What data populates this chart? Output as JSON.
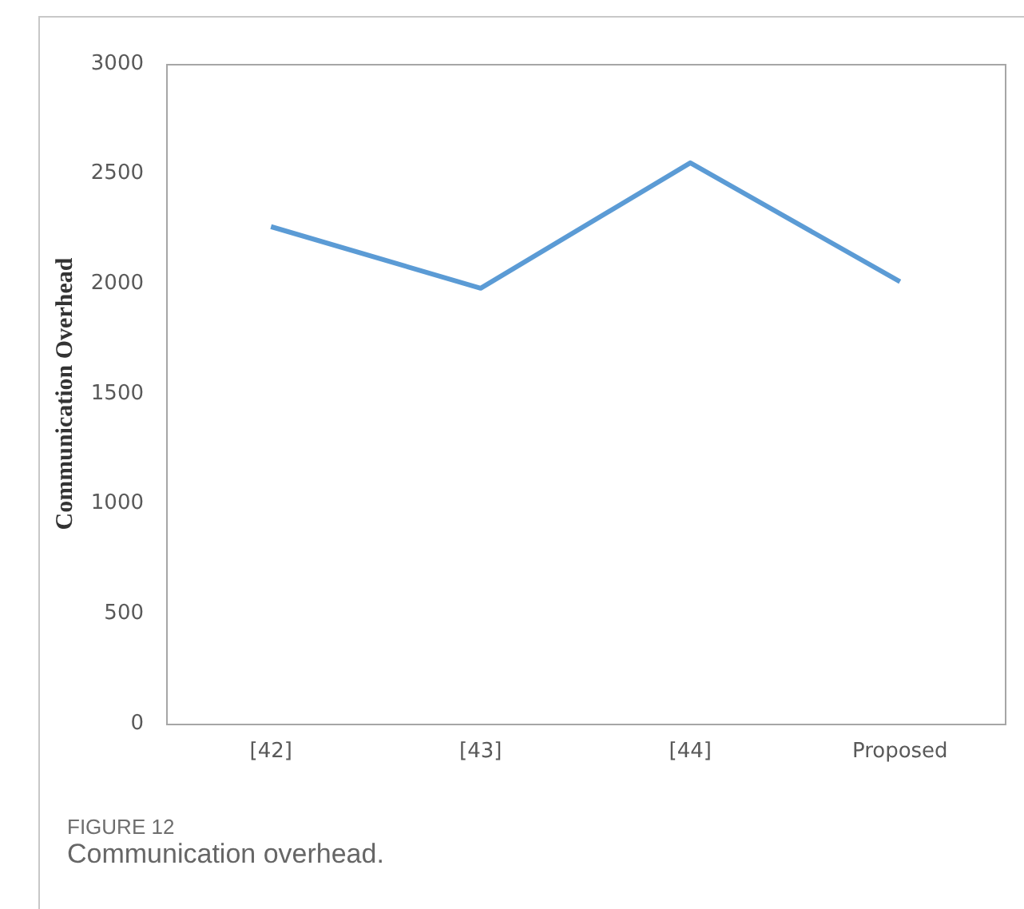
{
  "chart_data": {
    "type": "line",
    "ylabel": "Communication Overhead",
    "categories": [
      "[42]",
      "[43]",
      "[44]",
      "Proposed"
    ],
    "series": [
      {
        "color": "#5b9bd5",
        "values": [
          2260,
          1980,
          2550,
          2010
        ]
      }
    ],
    "ylim": [
      0,
      3000
    ],
    "yticks": [
      0,
      500,
      1000,
      1500,
      2000,
      2500,
      3000
    ],
    "grid": false,
    "legend": false,
    "marker": "none",
    "line_style": "solid",
    "annotations": [
      "FIGURE 12",
      "Communication overhead."
    ]
  }
}
